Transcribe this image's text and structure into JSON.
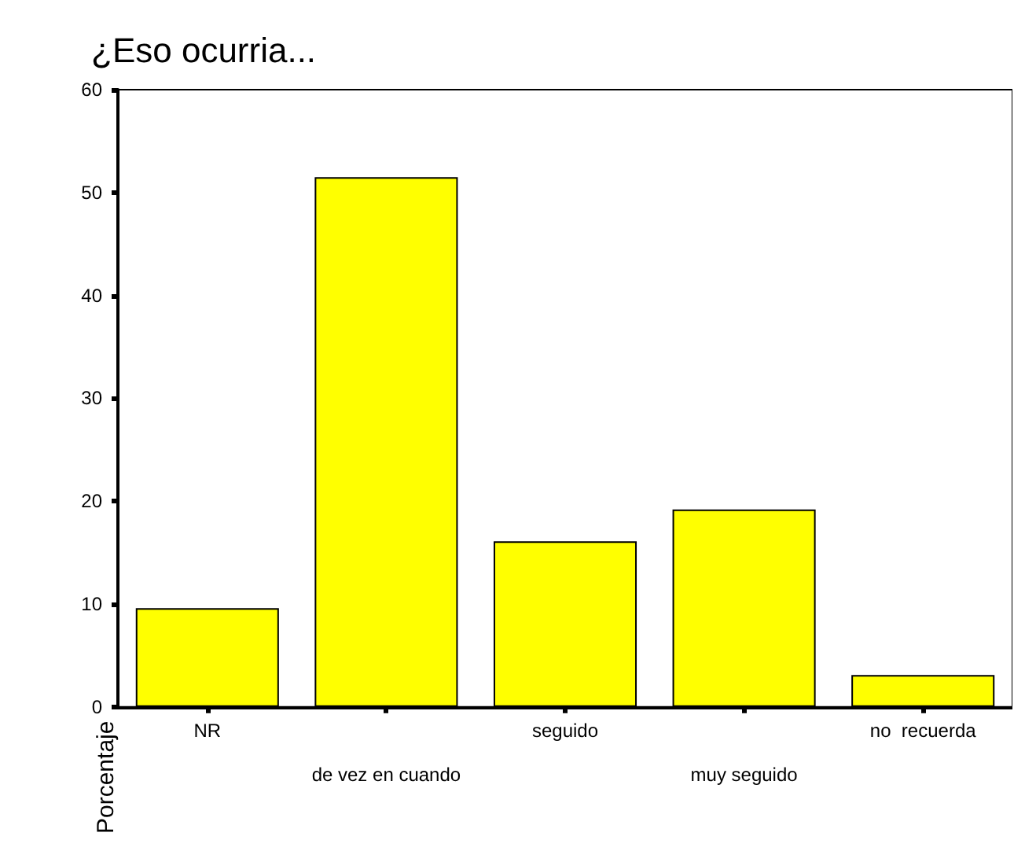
{
  "chart_data": {
    "type": "bar",
    "title": "¿Eso ocurria...",
    "ylabel": "Porcentaje",
    "categories": [
      "NR",
      "de vez en cuando",
      "seguido",
      "muy seguido",
      "no  recuerda"
    ],
    "values": [
      9.6,
      51.5,
      16.1,
      19.2,
      3.1
    ],
    "color": "#ffff00",
    "ylim": [
      0,
      60
    ],
    "yticks": [
      0,
      10,
      20,
      30,
      40,
      50,
      60
    ],
    "grid": false
  }
}
